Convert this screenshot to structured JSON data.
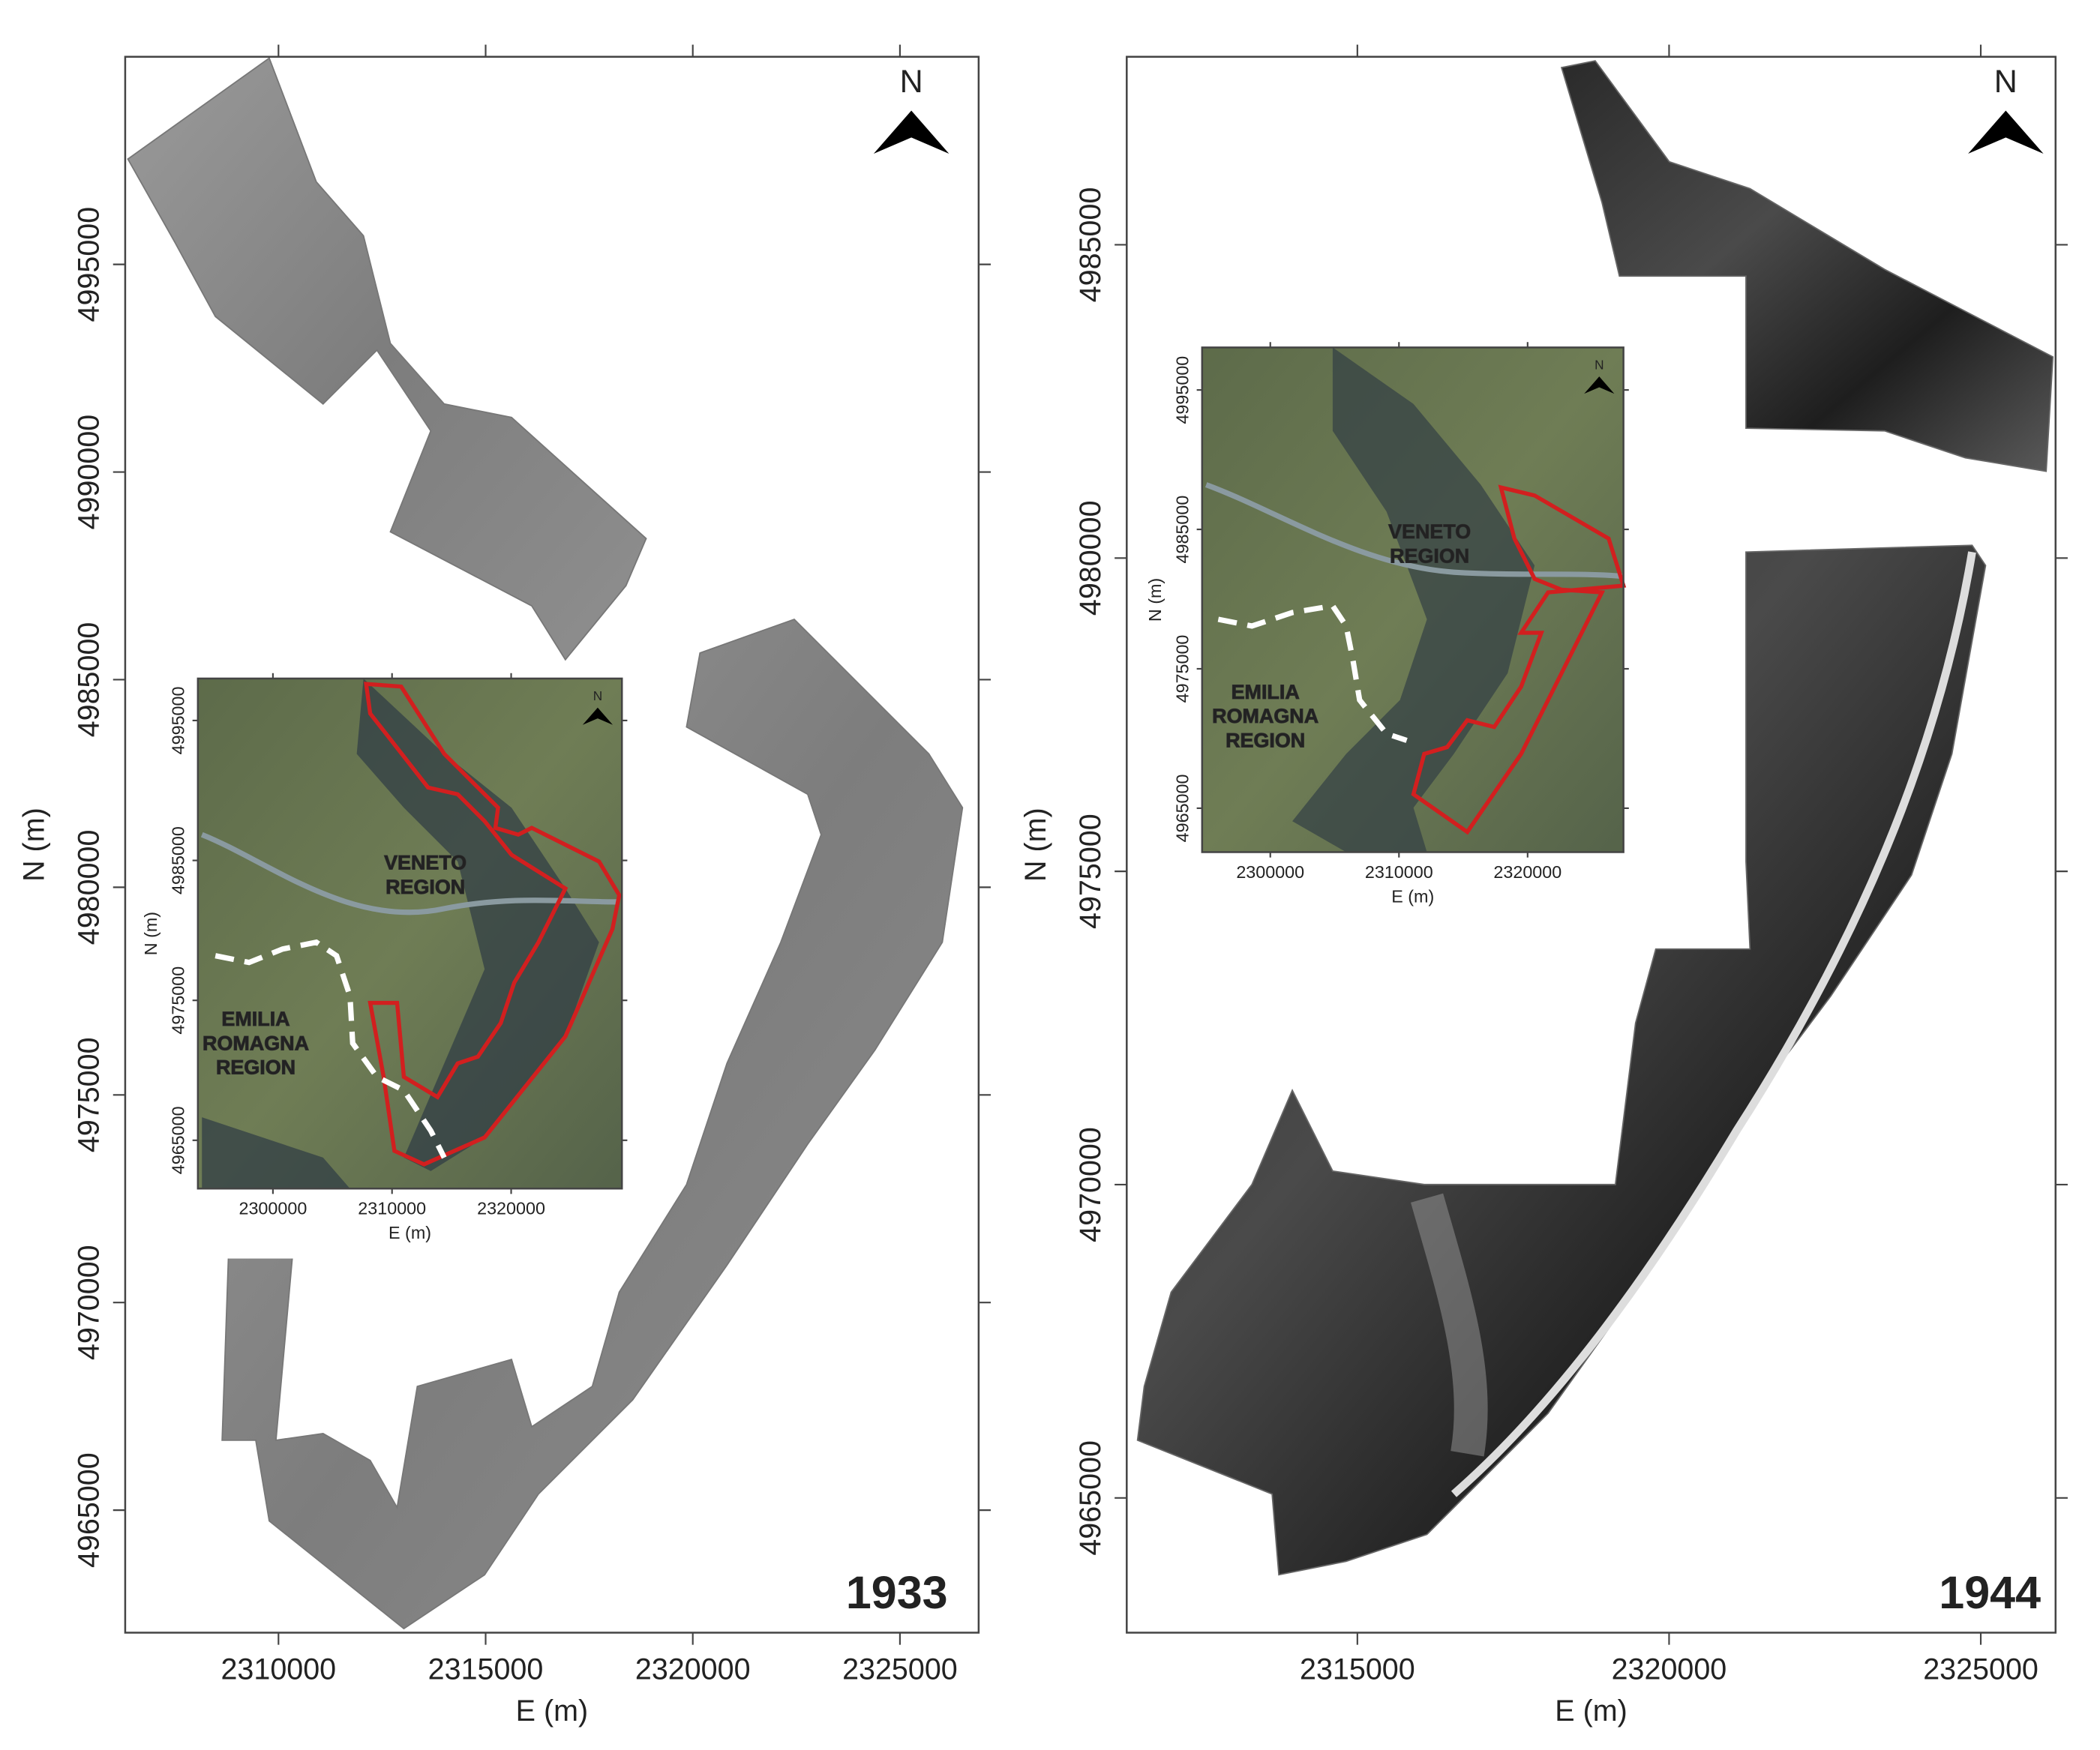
{
  "panels": [
    {
      "year": "1933",
      "x_label": "E (m)",
      "y_label": "N (m)",
      "north": "N",
      "xlim": [
        2306300,
        2326900
      ],
      "ylim": [
        4962050,
        5000000
      ],
      "xticks": [
        2310000,
        2315000,
        2320000,
        2325000
      ],
      "yticks": [
        4965000,
        4970000,
        4975000,
        4980000,
        4985000,
        4990000,
        4995000
      ],
      "inset": {
        "x_label": "E (m)",
        "y_label": "N (m)",
        "north": "N",
        "xlim": [
          2293700,
          2329300
        ],
        "ylim": [
          4961550,
          4998000
        ],
        "xticks": [
          2300000,
          2310000,
          2320000
        ],
        "yticks": [
          4965000,
          4975000,
          4985000,
          4995000
        ],
        "regions": [
          [
            "VENETO",
            "REGION"
          ],
          [
            "EMILIA",
            "ROMAGNA",
            "REGION"
          ]
        ]
      }
    },
    {
      "year": "1944",
      "x_label": "E (m)",
      "y_label": "N (m)",
      "north": "N",
      "xlim": [
        2311300,
        2326200
      ],
      "ylim": [
        4962850,
        4988000
      ],
      "xticks": [
        2315000,
        2320000,
        2325000
      ],
      "yticks": [
        4965000,
        4970000,
        4975000,
        4980000,
        4985000
      ],
      "inset": {
        "x_label": "E (m)",
        "y_label": "N (m)",
        "north": "N",
        "xlim": [
          2294700,
          2327450
        ],
        "ylim": [
          4961850,
          4998050
        ],
        "xticks": [
          2300000,
          2310000,
          2320000
        ],
        "yticks": [
          4965000,
          4975000,
          4985000,
          4995000
        ],
        "regions": [
          [
            "VENETO",
            "REGION"
          ],
          [
            "EMILIA",
            "ROMAGNA",
            "REGION"
          ]
        ]
      }
    }
  ]
}
